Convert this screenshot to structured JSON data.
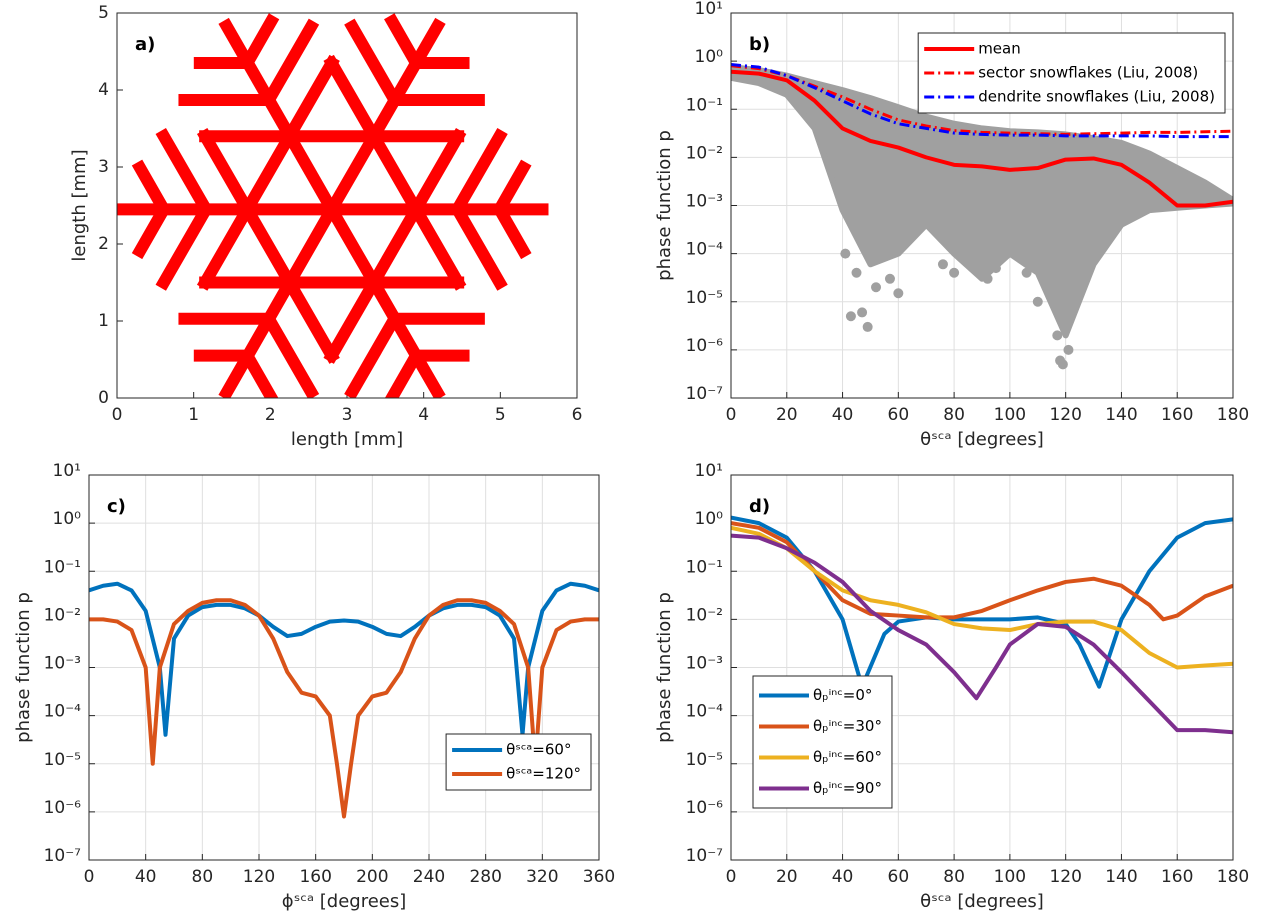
{
  "chart_data": [
    {
      "type": "shape",
      "panel_label": "a)",
      "xlabel": "length [mm]",
      "ylabel": "length [mm]",
      "xlim": [
        0,
        6
      ],
      "ylim": [
        0,
        5
      ],
      "xticks": [
        0,
        1,
        2,
        3,
        4,
        5,
        6
      ],
      "yticks": [
        0,
        1,
        2,
        3,
        4,
        5
      ],
      "grid": false,
      "color": "#ff0000",
      "segments": [
        {
          "x": [
            2.8,
            5.55
          ],
          "y": [
            2.45,
            2.45
          ]
        },
        {
          "x": [
            2.8,
            4.18
          ],
          "y": [
            2.45,
            4.83
          ]
        },
        {
          "x": [
            2.8,
            1.43
          ],
          "y": [
            2.45,
            4.83
          ]
        },
        {
          "x": [
            2.8,
            0.05
          ],
          "y": [
            2.45,
            2.45
          ]
        },
        {
          "x": [
            2.8,
            1.43
          ],
          "y": [
            2.45,
            0.07
          ]
        },
        {
          "x": [
            2.8,
            4.18
          ],
          "y": [
            2.45,
            0.07
          ]
        },
        {
          "x": [
            2.8,
            1.15
          ],
          "y": [
            4.35,
            1.5
          ]
        },
        {
          "x": [
            1.15,
            4.45
          ],
          "y": [
            1.5,
            1.5
          ]
        },
        {
          "x": [
            4.45,
            2.8
          ],
          "y": [
            1.5,
            4.35
          ]
        },
        {
          "x": [
            4.45,
            1.15
          ],
          "y": [
            3.4,
            3.4
          ]
        },
        {
          "x": [
            1.15,
            2.8
          ],
          "y": [
            3.4,
            0.55
          ]
        },
        {
          "x": [
            2.8,
            4.45
          ],
          "y": [
            0.55,
            3.4
          ]
        },
        {
          "x": [
            4.44,
            4.99
          ],
          "y": [
            2.45,
            3.4
          ]
        },
        {
          "x": [
            4.44,
            4.99
          ],
          "y": [
            2.45,
            1.5
          ]
        },
        {
          "x": [
            4.99,
            5.3
          ],
          "y": [
            2.45,
            2.99
          ]
        },
        {
          "x": [
            4.99,
            5.3
          ],
          "y": [
            2.45,
            1.91
          ]
        },
        {
          "x": [
            1.16,
            0.61
          ],
          "y": [
            2.45,
            3.4
          ]
        },
        {
          "x": [
            1.16,
            0.61
          ],
          "y": [
            2.45,
            1.5
          ]
        },
        {
          "x": [
            0.61,
            0.3
          ],
          "y": [
            2.45,
            2.99
          ]
        },
        {
          "x": [
            0.61,
            0.3
          ],
          "y": [
            2.45,
            1.91
          ]
        },
        {
          "x": [
            3.62,
            4.72
          ],
          "y": [
            3.87,
            3.87
          ]
        },
        {
          "x": [
            3.62,
            3.07
          ],
          "y": [
            3.87,
            4.82
          ]
        },
        {
          "x": [
            3.9,
            4.52
          ],
          "y": [
            4.35,
            4.35
          ]
        },
        {
          "x": [
            3.9,
            3.59
          ],
          "y": [
            4.35,
            4.89
          ]
        },
        {
          "x": [
            1.98,
            0.88
          ],
          "y": [
            3.87,
            3.87
          ]
        },
        {
          "x": [
            1.98,
            2.53
          ],
          "y": [
            3.87,
            4.82
          ]
        },
        {
          "x": [
            1.7,
            1.08
          ],
          "y": [
            4.35,
            4.35
          ]
        },
        {
          "x": [
            1.7,
            2.01
          ],
          "y": [
            4.35,
            4.89
          ]
        },
        {
          "x": [
            3.62,
            4.72
          ],
          "y": [
            1.03,
            1.03
          ]
        },
        {
          "x": [
            3.62,
            3.07
          ],
          "y": [
            1.03,
            0.08
          ]
        },
        {
          "x": [
            3.9,
            4.52
          ],
          "y": [
            0.55,
            0.55
          ]
        },
        {
          "x": [
            3.9,
            3.59
          ],
          "y": [
            0.55,
            0.01
          ]
        },
        {
          "x": [
            1.98,
            0.88
          ],
          "y": [
            1.03,
            1.03
          ]
        },
        {
          "x": [
            1.98,
            2.53
          ],
          "y": [
            1.03,
            0.08
          ]
        },
        {
          "x": [
            1.7,
            1.08
          ],
          "y": [
            0.55,
            0.55
          ]
        },
        {
          "x": [
            1.7,
            2.01
          ],
          "y": [
            0.55,
            0.01
          ]
        }
      ]
    },
    {
      "type": "line",
      "panel_label": "b)",
      "xlabel": "θˢᶜᵃ [degrees]",
      "ylabel": "phase function p",
      "yscale": "log",
      "grid": true,
      "legend": "upper right",
      "xlim": [
        0,
        180
      ],
      "ylim": [
        1e-07,
        10
      ],
      "xticks": [
        0,
        20,
        40,
        60,
        80,
        100,
        120,
        140,
        160,
        180
      ],
      "yticks": [
        {
          "value": 1e-07,
          "label": "10⁻⁷"
        },
        {
          "value": 1e-06,
          "label": "10⁻⁶"
        },
        {
          "value": 1e-05,
          "label": "10⁻⁵"
        },
        {
          "value": 0.0001,
          "label": "10⁻⁴"
        },
        {
          "value": 0.001,
          "label": "10⁻³"
        },
        {
          "value": 0.01,
          "label": "10⁻²"
        },
        {
          "value": 0.1,
          "label": "10⁻¹"
        },
        {
          "value": 1,
          "label": "10⁰"
        },
        {
          "value": 10,
          "label": "10¹"
        }
      ],
      "x": [
        0,
        10,
        20,
        30,
        40,
        50,
        60,
        70,
        80,
        90,
        100,
        110,
        120,
        130,
        140,
        150,
        160,
        170,
        180
      ],
      "cloud": {
        "color": "#a0a0a0",
        "upper": [
          0.75,
          0.65,
          0.5,
          0.35,
          0.25,
          0.17,
          0.11,
          0.07,
          0.05,
          0.04,
          0.035,
          0.033,
          0.03,
          0.025,
          0.02,
          0.012,
          0.006,
          0.003,
          0.0013
        ],
        "lower": [
          0.45,
          0.35,
          0.2,
          0.04,
          0.0008,
          6e-05,
          0.0001,
          0.0004,
          0.0001,
          3e-05,
          0.0001,
          4e-05,
          2e-06,
          6e-05,
          0.0004,
          0.0008,
          0.0009,
          0.001,
          0.0011
        ]
      },
      "cloud_points": {
        "x": [
          41,
          43,
          45,
          47,
          49,
          52,
          57,
          60,
          76,
          80,
          92,
          95,
          106,
          110,
          117,
          118,
          119,
          121,
          124,
          128
        ],
        "y": [
          0.0001,
          5e-06,
          4e-05,
          6e-06,
          3e-06,
          2e-05,
          3e-05,
          1.5e-05,
          6e-05,
          4e-05,
          3e-05,
          5e-05,
          4e-05,
          1e-05,
          2e-06,
          6e-07,
          5e-07,
          1e-06,
          2e-05,
          0.0001
        ]
      },
      "series": [
        {
          "name": "mean",
          "color": "#ff0000",
          "style": "solid",
          "values": [
            0.6,
            0.55,
            0.4,
            0.15,
            0.04,
            0.022,
            0.016,
            0.01,
            0.007,
            0.0065,
            0.0055,
            0.006,
            0.009,
            0.0095,
            0.007,
            0.003,
            0.001,
            0.001,
            0.0012
          ]
        },
        {
          "name": "sector snowflakes (Liu, 2008)",
          "color": "#ff0000",
          "style": "dashdot",
          "values": [
            0.8,
            0.7,
            0.5,
            0.3,
            0.18,
            0.1,
            0.06,
            0.045,
            0.036,
            0.033,
            0.032,
            0.031,
            0.03,
            0.031,
            0.032,
            0.033,
            0.033,
            0.034,
            0.035
          ]
        },
        {
          "name": "dendrite snowflakes (Liu, 2008)",
          "color": "#0000ff",
          "style": "dashdot",
          "values": [
            0.85,
            0.75,
            0.5,
            0.28,
            0.15,
            0.08,
            0.05,
            0.04,
            0.032,
            0.03,
            0.029,
            0.029,
            0.028,
            0.028,
            0.028,
            0.028,
            0.027,
            0.027,
            0.027
          ]
        }
      ]
    },
    {
      "type": "line",
      "panel_label": "c)",
      "xlabel": "ϕˢᶜᵃ [degrees]",
      "ylabel": "phase function p",
      "yscale": "log",
      "grid": true,
      "legend": "lower right",
      "xlim": [
        0,
        360
      ],
      "ylim": [
        1e-07,
        10
      ],
      "xticks": [
        0,
        40,
        80,
        120,
        160,
        200,
        240,
        280,
        320,
        360
      ],
      "yticks": [
        {
          "value": 1e-07,
          "label": "10⁻⁷"
        },
        {
          "value": 1e-06,
          "label": "10⁻⁶"
        },
        {
          "value": 1e-05,
          "label": "10⁻⁵"
        },
        {
          "value": 0.0001,
          "label": "10⁻⁴"
        },
        {
          "value": 0.001,
          "label": "10⁻³"
        },
        {
          "value": 0.01,
          "label": "10⁻²"
        },
        {
          "value": 0.1,
          "label": "10⁻¹"
        },
        {
          "value": 1,
          "label": "10⁰"
        },
        {
          "value": 10,
          "label": "10¹"
        }
      ],
      "series": [
        {
          "name": "θˢᶜᵃ=60°",
          "color": "#0072bd",
          "style": "solid",
          "x": [
            0,
            10,
            20,
            30,
            40,
            50,
            54,
            60,
            70,
            80,
            90,
            100,
            110,
            120,
            130,
            140,
            150,
            160,
            170,
            180,
            190,
            200,
            210,
            220,
            230,
            240,
            250,
            260,
            270,
            280,
            290,
            300,
            306,
            310,
            320,
            330,
            340,
            350,
            360
          ],
          "values": [
            0.04,
            0.05,
            0.055,
            0.04,
            0.015,
            0.001,
            4e-05,
            0.004,
            0.012,
            0.018,
            0.02,
            0.02,
            0.017,
            0.012,
            0.007,
            0.0045,
            0.005,
            0.007,
            0.009,
            0.0095,
            0.009,
            0.007,
            0.005,
            0.0045,
            0.007,
            0.012,
            0.017,
            0.02,
            0.02,
            0.018,
            0.012,
            0.004,
            4e-05,
            0.001,
            0.015,
            0.04,
            0.055,
            0.05,
            0.04
          ]
        },
        {
          "name": "θˢᶜᵃ=120°",
          "color": "#d95319",
          "style": "solid",
          "x": [
            0,
            10,
            20,
            30,
            40,
            45,
            50,
            60,
            70,
            80,
            90,
            100,
            110,
            120,
            130,
            140,
            150,
            160,
            170,
            175,
            180,
            185,
            190,
            200,
            210,
            220,
            230,
            240,
            250,
            260,
            270,
            280,
            290,
            300,
            310,
            315,
            320,
            330,
            340,
            350,
            360
          ],
          "values": [
            0.01,
            0.01,
            0.009,
            0.006,
            0.001,
            1e-05,
            0.001,
            0.008,
            0.015,
            0.022,
            0.025,
            0.025,
            0.02,
            0.012,
            0.004,
            0.0008,
            0.0003,
            0.00025,
            0.0001,
            1e-05,
            8e-07,
            1e-05,
            0.0001,
            0.00025,
            0.0003,
            0.0008,
            0.004,
            0.012,
            0.02,
            0.025,
            0.025,
            0.022,
            0.015,
            0.008,
            0.001,
            1e-05,
            0.001,
            0.006,
            0.009,
            0.01,
            0.01
          ]
        }
      ]
    },
    {
      "type": "line",
      "panel_label": "d)",
      "xlabel": "θˢᶜᵃ [degrees]",
      "ylabel": "phase function p",
      "yscale": "log",
      "grid": true,
      "legend": "lower left",
      "xlim": [
        0,
        180
      ],
      "ylim": [
        1e-07,
        10
      ],
      "xticks": [
        0,
        20,
        40,
        60,
        80,
        100,
        120,
        140,
        160,
        180
      ],
      "yticks": [
        {
          "value": 1e-07,
          "label": "10⁻⁷"
        },
        {
          "value": 1e-06,
          "label": "10⁻⁶"
        },
        {
          "value": 1e-05,
          "label": "10⁻⁵"
        },
        {
          "value": 0.0001,
          "label": "10⁻⁴"
        },
        {
          "value": 0.001,
          "label": "10⁻³"
        },
        {
          "value": 0.01,
          "label": "10⁻²"
        },
        {
          "value": 0.1,
          "label": "10⁻¹"
        },
        {
          "value": 1,
          "label": "10⁰"
        },
        {
          "value": 10,
          "label": "10¹"
        }
      ],
      "series": [
        {
          "name": "θₚⁱⁿᶜ=0°",
          "color": "#0072bd",
          "style": "solid",
          "x": [
            0,
            10,
            20,
            30,
            40,
            47,
            55,
            60,
            70,
            80,
            90,
            100,
            110,
            120,
            125,
            132,
            140,
            150,
            160,
            170,
            180
          ],
          "values": [
            1.3,
            1.0,
            0.5,
            0.1,
            0.01,
            0.0004,
            0.005,
            0.009,
            0.011,
            0.01,
            0.01,
            0.01,
            0.011,
            0.008,
            0.003,
            0.0004,
            0.01,
            0.1,
            0.5,
            1.0,
            1.2
          ]
        },
        {
          "name": "θₚⁱⁿᶜ=30°",
          "color": "#d95319",
          "style": "solid",
          "x": [
            0,
            10,
            20,
            30,
            40,
            50,
            60,
            70,
            80,
            90,
            100,
            110,
            120,
            130,
            140,
            150,
            155,
            160,
            170,
            180
          ],
          "values": [
            1.0,
            0.8,
            0.4,
            0.1,
            0.025,
            0.013,
            0.012,
            0.011,
            0.011,
            0.015,
            0.025,
            0.04,
            0.06,
            0.07,
            0.05,
            0.02,
            0.01,
            0.012,
            0.03,
            0.05
          ]
        },
        {
          "name": "θₚⁱⁿᶜ=60°",
          "color": "#edb120",
          "style": "solid",
          "x": [
            0,
            10,
            20,
            30,
            40,
            50,
            60,
            70,
            80,
            90,
            100,
            110,
            120,
            130,
            140,
            150,
            160,
            170,
            180
          ],
          "values": [
            0.8,
            0.6,
            0.3,
            0.1,
            0.04,
            0.025,
            0.02,
            0.014,
            0.008,
            0.0065,
            0.006,
            0.008,
            0.009,
            0.009,
            0.006,
            0.002,
            0.001,
            0.0011,
            0.0012
          ]
        },
        {
          "name": "θₚⁱⁿᶜ=90°",
          "color": "#7e2f8e",
          "style": "solid",
          "x": [
            0,
            10,
            20,
            30,
            40,
            50,
            60,
            70,
            80,
            88,
            95,
            100,
            110,
            120,
            130,
            140,
            150,
            160,
            170,
            180
          ],
          "values": [
            0.55,
            0.5,
            0.3,
            0.15,
            0.06,
            0.015,
            0.006,
            0.003,
            0.0008,
            0.00023,
            0.001,
            0.003,
            0.008,
            0.007,
            0.003,
            0.0008,
            0.0002,
            5e-05,
            5e-05,
            4.5e-05
          ]
        }
      ]
    }
  ]
}
